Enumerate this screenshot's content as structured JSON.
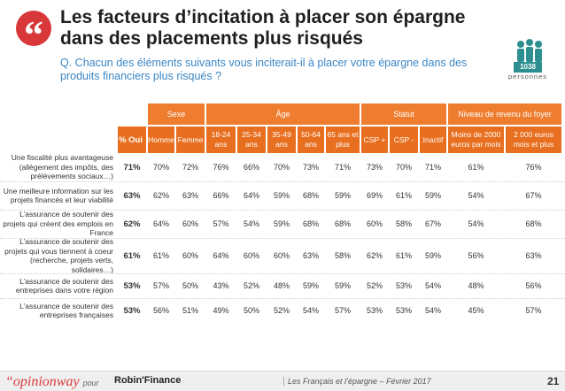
{
  "title": "Les facteurs d’incitation à placer son épargne dans des placements plus risqués",
  "question": "Q. Chacun des éléments suivants vous inciterait-il à placer votre épargne dans des produits financiers plus risqués ?",
  "sample": {
    "count": "1038",
    "label": "personnes"
  },
  "groups": [
    {
      "label": "Sexe"
    },
    {
      "label": "Âge"
    },
    {
      "label": "Statut"
    },
    {
      "label": "Niveau de revenu du foyer"
    }
  ],
  "columns": [
    "% Oui",
    "Homme",
    "Femme",
    "18-24 ans",
    "25-34 ans",
    "35-49 ans",
    "50-64 ans",
    "65 ans et plus",
    "CSP +",
    "CSP -",
    "Inactif",
    "Moins de 2000 euros par mois",
    "2 000 euros mois et plus"
  ],
  "rows": [
    {
      "label": "Une fiscalité plus avantageuse (allègement des impôts, des prélèvements sociaux…)",
      "values": [
        "71%",
        "70%",
        "72%",
        "76%",
        "66%",
        "70%",
        "73%",
        "71%",
        "73%",
        "70%",
        "71%",
        "61%",
        "76%"
      ]
    },
    {
      "label": "Une meilleure information sur les projets financés et leur viabilité",
      "values": [
        "63%",
        "62%",
        "63%",
        "66%",
        "64%",
        "59%",
        "68%",
        "59%",
        "69%",
        "61%",
        "59%",
        "54%",
        "67%"
      ]
    },
    {
      "label": "L’assurance de soutenir des projets qui créent des emplois en France",
      "values": [
        "62%",
        "64%",
        "60%",
        "57%",
        "54%",
        "59%",
        "68%",
        "68%",
        "60%",
        "58%",
        "67%",
        "54%",
        "68%"
      ]
    },
    {
      "label": "L’assurance de soutenir des projets qui vous tiennent à coeur (recherche, projets verts, solidaires…)",
      "values": [
        "61%",
        "61%",
        "60%",
        "64%",
        "60%",
        "60%",
        "63%",
        "58%",
        "62%",
        "61%",
        "59%",
        "56%",
        "63%"
      ]
    },
    {
      "label": "L’assurance de soutenir des entreprises dans votre région",
      "values": [
        "53%",
        "57%",
        "50%",
        "43%",
        "52%",
        "48%",
        "59%",
        "59%",
        "52%",
        "53%",
        "54%",
        "48%",
        "56%"
      ]
    },
    {
      "label": "L’assurance de soutenir des entreprises françaises",
      "values": [
        "53%",
        "56%",
        "51%",
        "49%",
        "50%",
        "52%",
        "54%",
        "57%",
        "53%",
        "53%",
        "54%",
        "45%",
        "57%"
      ]
    }
  ],
  "footer": {
    "brand": "“opinionway",
    "pour": "pour",
    "partner": "Robin'Finance",
    "text": "Les Français et l’épargne – Février 2017",
    "page": "21"
  },
  "colors": {
    "accent": "#e86f1f",
    "header_light": "#ee7d2f",
    "badge": "#d9383a",
    "question": "#3b86c4"
  }
}
